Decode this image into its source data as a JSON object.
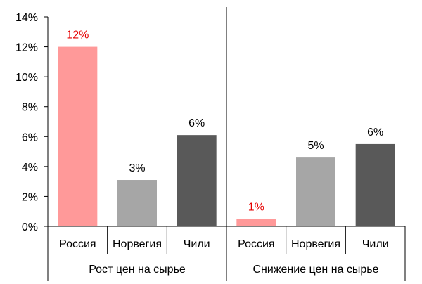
{
  "chart_data": {
    "type": "bar",
    "ylim": [
      0,
      14
    ],
    "yticks": [
      "0%",
      "2%",
      "4%",
      "6%",
      "8%",
      "10%",
      "12%",
      "14%"
    ],
    "grid": false,
    "groups": [
      {
        "label": "Рост цен на сырье",
        "bars": [
          {
            "category": "Россия",
            "value": 12,
            "label": "12%",
            "color": "#ff9999",
            "label_color": "#e60000"
          },
          {
            "category": "Норвегия",
            "value": 3.1,
            "label": "3%",
            "color": "#a6a6a6",
            "label_color": "#000000"
          },
          {
            "category": "Чили",
            "value": 6.1,
            "label": "6%",
            "color": "#595959",
            "label_color": "#000000"
          }
        ]
      },
      {
        "label": "Снижение цен на сырье",
        "bars": [
          {
            "category": "Россия",
            "value": 0.5,
            "label": "1%",
            "color": "#ff9999",
            "label_color": "#e60000"
          },
          {
            "category": "Норвегия",
            "value": 4.6,
            "label": "5%",
            "color": "#a6a6a6",
            "label_color": "#000000"
          },
          {
            "category": "Чили",
            "value": 5.5,
            "label": "6%",
            "color": "#595959",
            "label_color": "#000000"
          }
        ]
      }
    ]
  }
}
